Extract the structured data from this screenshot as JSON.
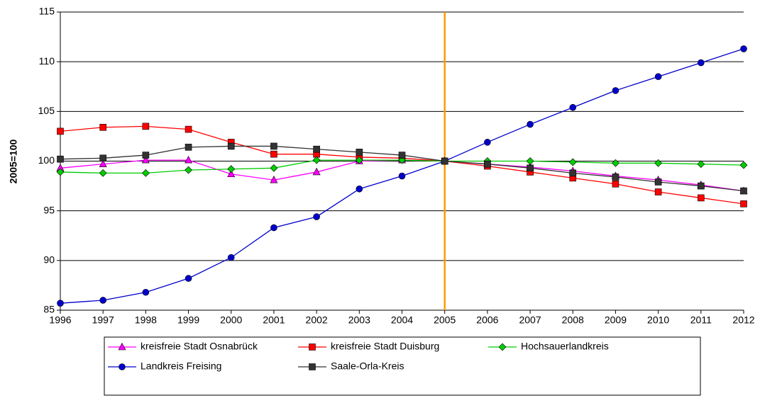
{
  "chart_data": {
    "type": "line",
    "y_label": "2005=100",
    "x": [
      1996,
      1997,
      1998,
      1999,
      2000,
      2001,
      2002,
      2003,
      2004,
      2005,
      2006,
      2007,
      2008,
      2009,
      2010,
      2011,
      2012
    ],
    "xlim": [
      1996,
      2012
    ],
    "xticks": [
      1996,
      1997,
      1998,
      1999,
      2000,
      2001,
      2002,
      2003,
      2004,
      2005,
      2006,
      2007,
      2008,
      2009,
      2010,
      2011,
      2012
    ],
    "ylim": [
      85,
      115
    ],
    "yticks": [
      85,
      90,
      95,
      100,
      105,
      110,
      115
    ],
    "grid": true,
    "legend": "bottom",
    "vline": {
      "x": 2005,
      "color": "#ff9900"
    },
    "series": [
      {
        "name": "kreisfreie Stadt Osnabrück",
        "color": "#ff00ff",
        "marker": "triangle",
        "values": [
          99.3,
          99.7,
          100.1,
          100.1,
          98.7,
          98.1,
          98.9,
          100.0,
          100.1,
          100,
          99.7,
          99.4,
          99.0,
          98.5,
          98.1,
          97.6,
          97.0
        ]
      },
      {
        "name": "kreisfreie Stadt Duisburg",
        "color": "#ff0000",
        "marker": "square",
        "values": [
          103.0,
          103.4,
          103.5,
          103.2,
          101.9,
          100.7,
          100.7,
          100.4,
          100.3,
          100,
          99.5,
          98.9,
          98.3,
          97.7,
          96.9,
          96.3,
          95.7
        ]
      },
      {
        "name": "Hochsauerlandkreis",
        "color": "#00cc00",
        "marker": "diamond",
        "values": [
          98.9,
          98.8,
          98.8,
          99.1,
          99.2,
          99.3,
          100.1,
          100.1,
          100.1,
          100,
          100.0,
          100.0,
          99.9,
          99.8,
          99.8,
          99.7,
          99.6
        ]
      },
      {
        "name": "Landkreis Freising",
        "color": "#0000cc",
        "marker": "circle",
        "values": [
          85.7,
          86.0,
          86.8,
          88.2,
          90.3,
          93.3,
          94.4,
          97.2,
          98.5,
          100,
          101.9,
          103.7,
          105.4,
          107.1,
          108.5,
          109.9,
          111.3
        ]
      },
      {
        "name": "Saale-Orla-Kreis",
        "color": "#333333",
        "marker": "square",
        "values": [
          100.2,
          100.3,
          100.6,
          101.4,
          101.5,
          101.5,
          101.2,
          100.9,
          100.6,
          100,
          99.7,
          99.3,
          98.8,
          98.4,
          97.9,
          97.5,
          97.0
        ]
      }
    ]
  }
}
